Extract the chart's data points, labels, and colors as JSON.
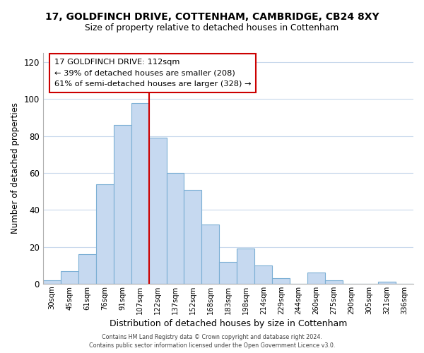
{
  "title": "17, GOLDFINCH DRIVE, COTTENHAM, CAMBRIDGE, CB24 8XY",
  "subtitle": "Size of property relative to detached houses in Cottenham",
  "xlabel": "Distribution of detached houses by size in Cottenham",
  "ylabel": "Number of detached properties",
  "bin_labels": [
    "30sqm",
    "45sqm",
    "61sqm",
    "76sqm",
    "91sqm",
    "107sqm",
    "122sqm",
    "137sqm",
    "152sqm",
    "168sqm",
    "183sqm",
    "198sqm",
    "214sqm",
    "229sqm",
    "244sqm",
    "260sqm",
    "275sqm",
    "290sqm",
    "305sqm",
    "321sqm",
    "336sqm"
  ],
  "bar_heights": [
    2,
    7,
    16,
    54,
    86,
    98,
    79,
    60,
    51,
    32,
    12,
    19,
    10,
    3,
    0,
    6,
    2,
    0,
    0,
    1,
    0
  ],
  "bar_color": "#c6d9f0",
  "bar_edge_color": "#7bafd4",
  "vline_x": 6.0,
  "vline_color": "#cc0000",
  "ylim": [
    0,
    125
  ],
  "yticks": [
    0,
    20,
    40,
    60,
    80,
    100,
    120
  ],
  "annotation_title": "17 GOLDFINCH DRIVE: 112sqm",
  "annotation_line1": "← 39% of detached houses are smaller (208)",
  "annotation_line2": "61% of semi-detached houses are larger (328) →",
  "annotation_box_color": "#ffffff",
  "annotation_box_edge": "#cc0000",
  "footer1": "Contains HM Land Registry data © Crown copyright and database right 2024.",
  "footer2": "Contains public sector information licensed under the Open Government Licence v3.0.",
  "background_color": "#ffffff",
  "grid_color": "#c8d8ec"
}
